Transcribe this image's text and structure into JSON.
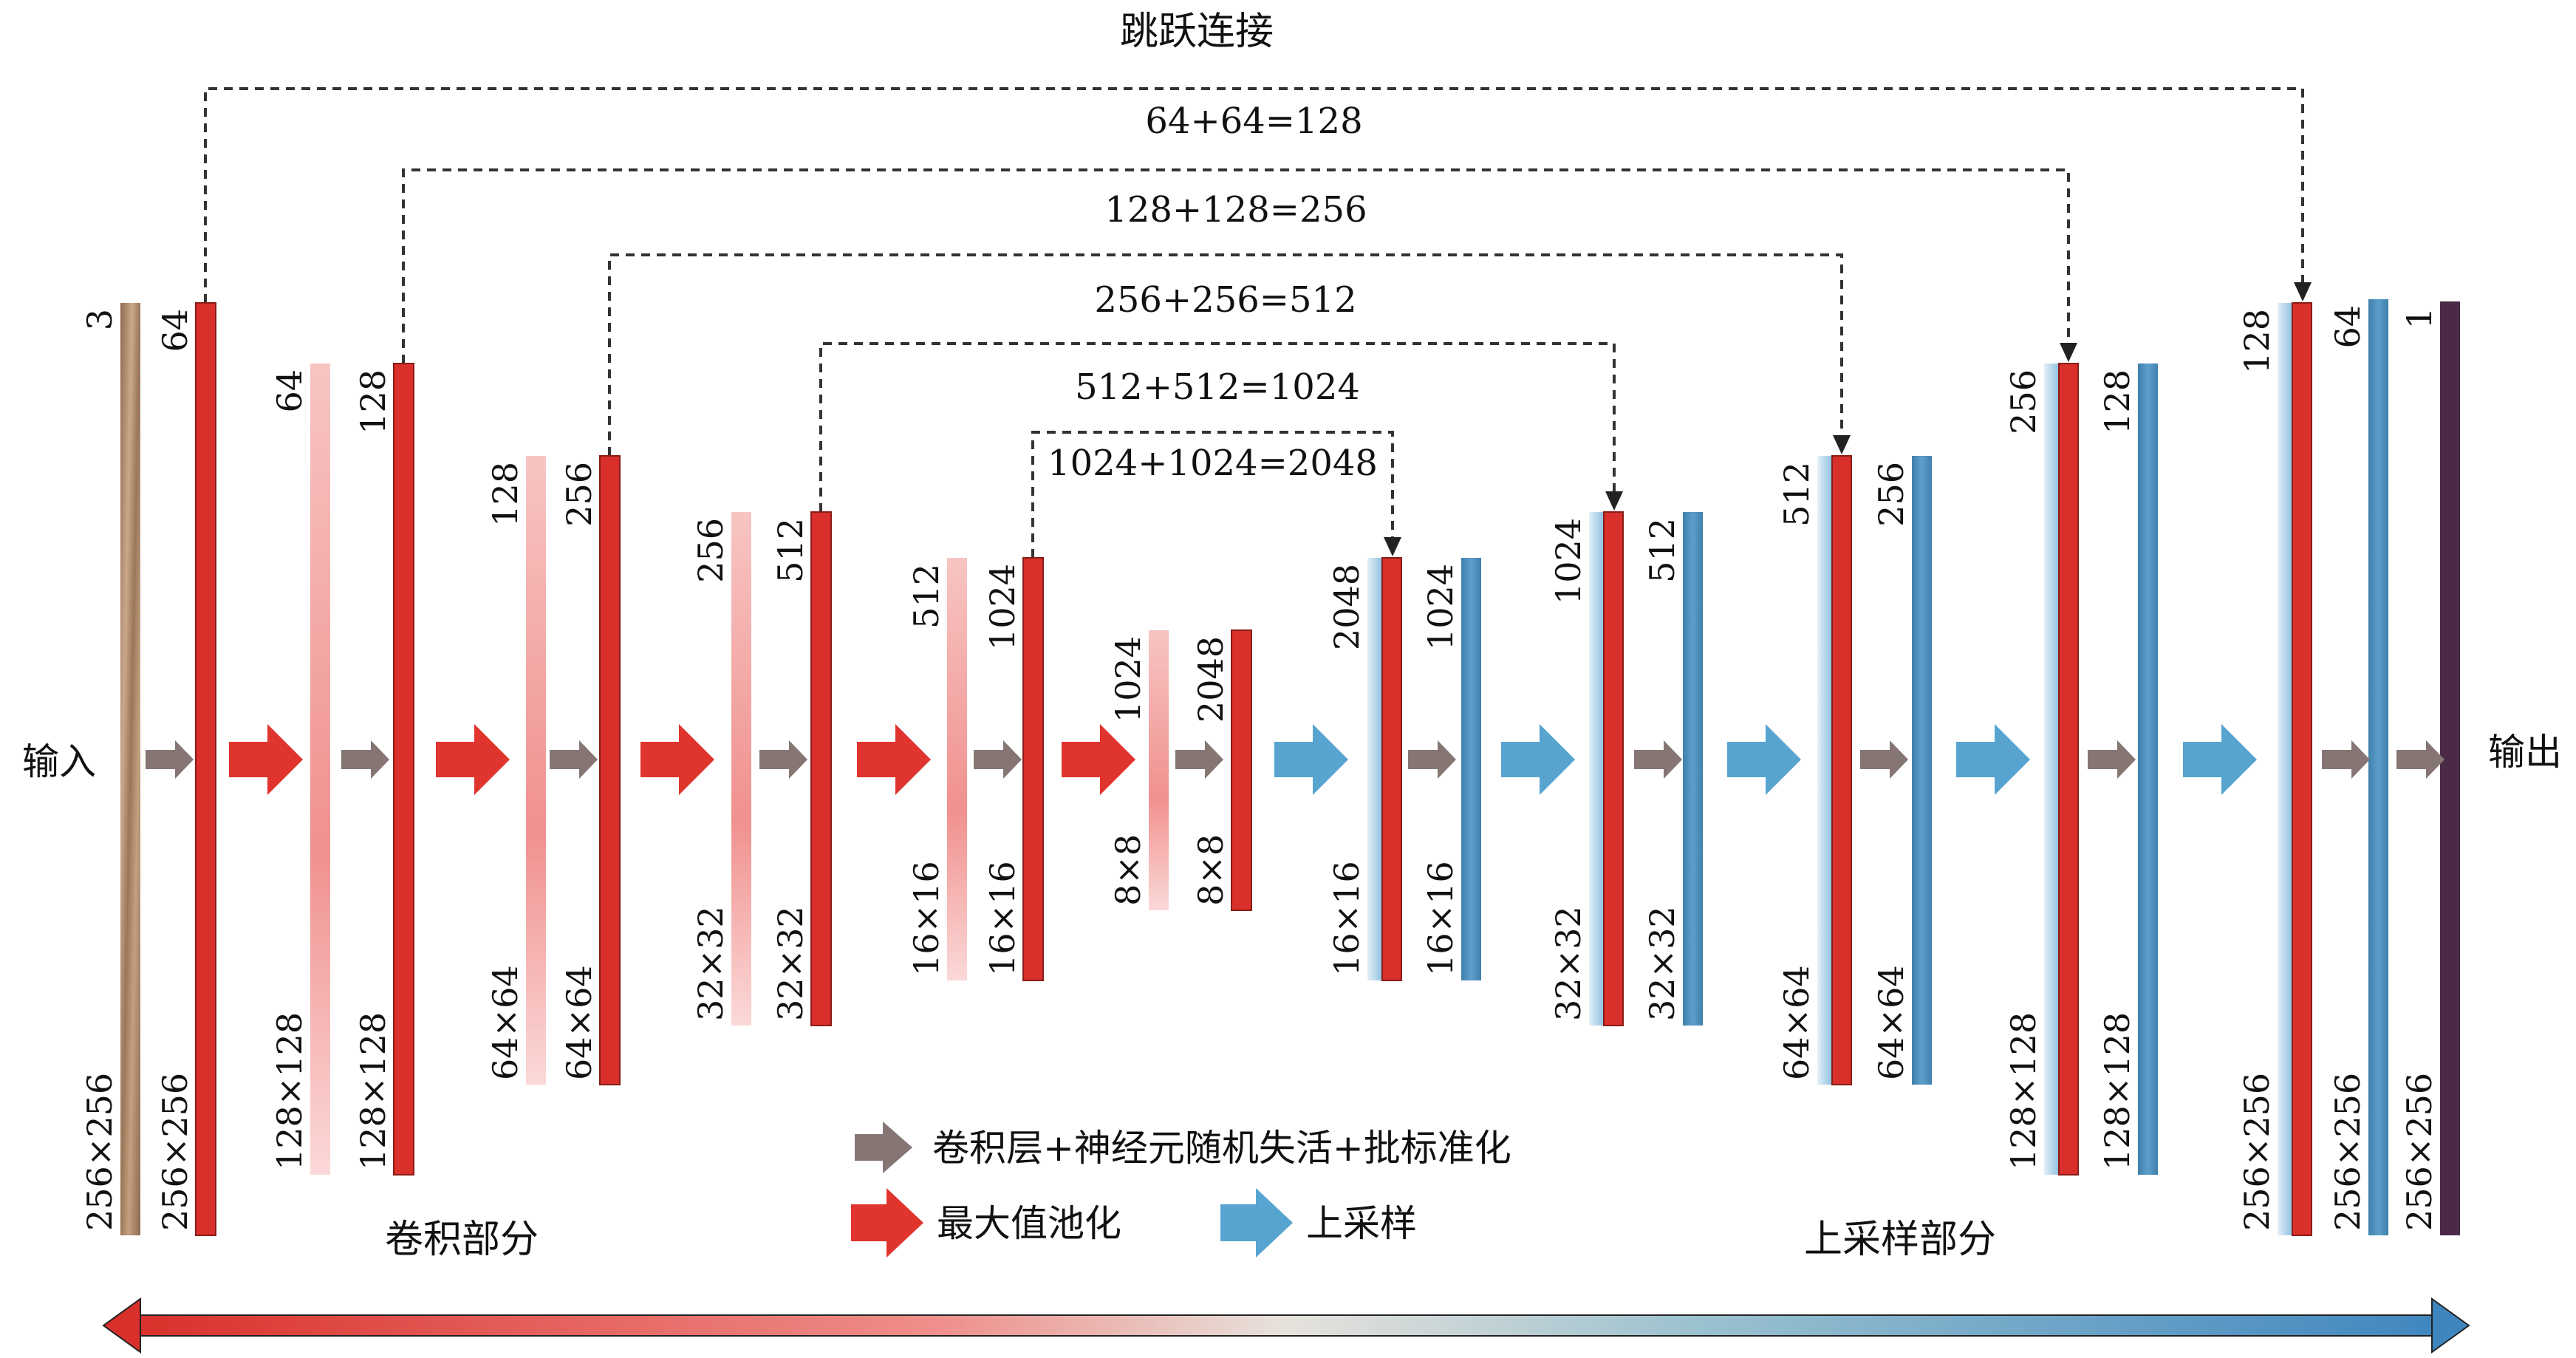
{
  "title": "跳跃连接",
  "input_label": "输入",
  "output_label": "输出",
  "encoder_label": "卷积部分",
  "decoder_label": "上采样部分",
  "skip_labels": [
    "64+64=128",
    "128+128=256",
    "256+256=512",
    "512+512=1024",
    "1024+1024=2048"
  ],
  "layers": [
    {
      "channels": "3",
      "size": "256×256",
      "kind": "input"
    },
    {
      "channels": "64",
      "size": "256×256",
      "kind": "red"
    },
    {
      "channels": "64",
      "size": "128×128",
      "kind": "pink"
    },
    {
      "channels": "128",
      "size": "128×128",
      "kind": "red"
    },
    {
      "channels": "128",
      "size": "64×64",
      "kind": "pink"
    },
    {
      "channels": "256",
      "size": "64×64",
      "kind": "red"
    },
    {
      "channels": "256",
      "size": "32×32",
      "kind": "pink"
    },
    {
      "channels": "512",
      "size": "32×32",
      "kind": "red"
    },
    {
      "channels": "512",
      "size": "16×16",
      "kind": "pink"
    },
    {
      "channels": "1024",
      "size": "16×16",
      "kind": "red"
    },
    {
      "channels": "1024",
      "size": "8×8",
      "kind": "pink"
    },
    {
      "channels": "2048",
      "size": "8×8",
      "kind": "red"
    },
    {
      "channels": "2048",
      "size": "16×16",
      "kind": "concat"
    },
    {
      "channels": "1024",
      "size": "16×16",
      "kind": "blue"
    },
    {
      "channels": "1024",
      "size": "32×32",
      "kind": "concat"
    },
    {
      "channels": "512",
      "size": "32×32",
      "kind": "blue"
    },
    {
      "channels": "512",
      "size": "64×64",
      "kind": "concat"
    },
    {
      "channels": "256",
      "size": "64×64",
      "kind": "blue"
    },
    {
      "channels": "256",
      "size": "128×128",
      "kind": "concat"
    },
    {
      "channels": "128",
      "size": "128×128",
      "kind": "blue"
    },
    {
      "channels": "128",
      "size": "256×256",
      "kind": "concat"
    },
    {
      "channels": "64",
      "size": "256×256",
      "kind": "blue"
    },
    {
      "channels": "1",
      "size": "256×256",
      "kind": "output"
    }
  ],
  "legend": {
    "conv": "卷积层+神经元随机失活+批标准化",
    "maxpool": "最大值池化",
    "upsample": "上采样"
  },
  "colors": {
    "red": "#d9302b",
    "pink": "#f3a7a5",
    "blue": "#4a8db8",
    "light_blue": "#cfe4f2",
    "gray_arrow": "#857674",
    "red_arrow": "#e0342e",
    "blue_arrow": "#58a4d0",
    "output": "#4a2a45",
    "input": "#a9876b"
  }
}
